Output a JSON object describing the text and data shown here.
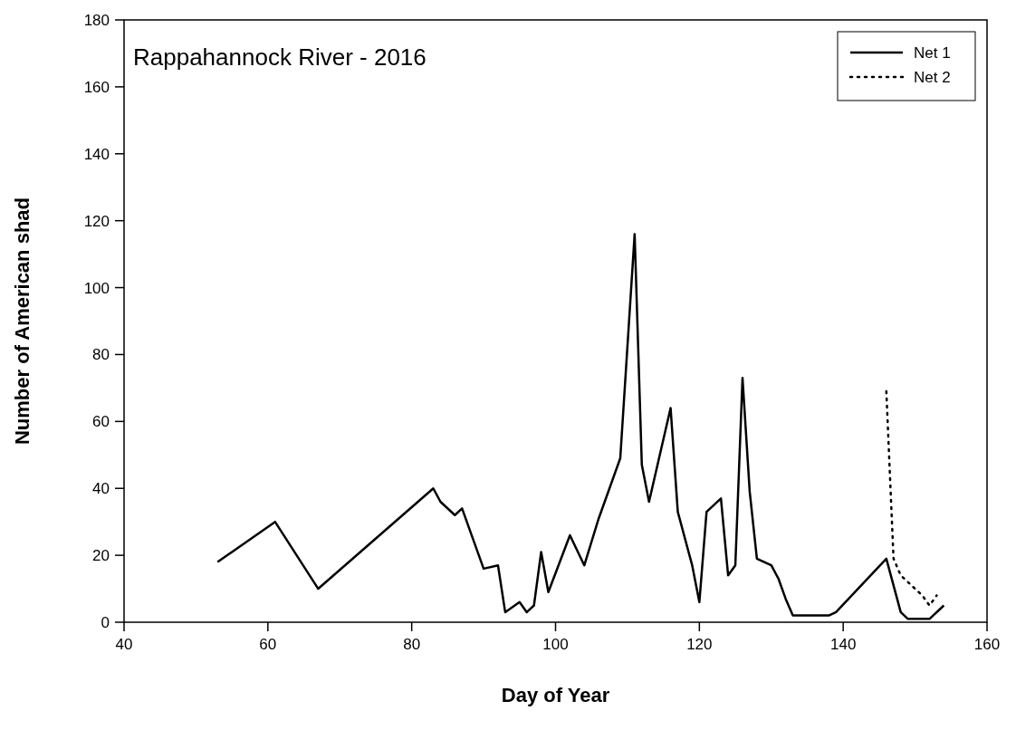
{
  "chart_data": {
    "type": "line",
    "title": "Rappahannock River - 2016",
    "xlabel": "Day of Year",
    "ylabel": "Number of American shad",
    "xlim": [
      40,
      160
    ],
    "xticks": [
      40,
      60,
      80,
      100,
      120,
      140,
      160
    ],
    "ylim": [
      0,
      180
    ],
    "yticks": [
      0,
      20,
      40,
      60,
      80,
      100,
      120,
      140,
      160,
      180
    ],
    "grid": false,
    "legend": "top right",
    "marker": "none",
    "series": [
      {
        "name": "Net 1",
        "color": "#000000",
        "line_style": "solid",
        "x": [
          53,
          61,
          67,
          83,
          84,
          86,
          87,
          90,
          92,
          93,
          95,
          96,
          97,
          98,
          99,
          102,
          104,
          106,
          109,
          111,
          112,
          113,
          116,
          117,
          119,
          120,
          121,
          123,
          124,
          125,
          126,
          127,
          128,
          130,
          131,
          132,
          133,
          138,
          139,
          146,
          148,
          149,
          152,
          154
        ],
        "values": [
          18,
          30,
          10,
          40,
          36,
          32,
          34,
          16,
          17,
          3,
          6,
          3,
          5,
          21,
          9,
          26,
          17,
          31,
          49,
          116,
          47,
          36,
          64,
          33,
          17,
          6,
          33,
          37,
          14,
          17,
          73,
          39,
          19,
          17,
          13,
          7,
          2,
          2,
          3,
          19,
          3,
          1,
          1,
          5
        ]
      },
      {
        "name": "Net 2",
        "color": "#000000",
        "line_style": "dotted",
        "x": [
          146,
          147,
          148,
          150,
          151,
          152,
          153
        ],
        "values": [
          69,
          19,
          14,
          10,
          8,
          5,
          8
        ]
      }
    ]
  }
}
